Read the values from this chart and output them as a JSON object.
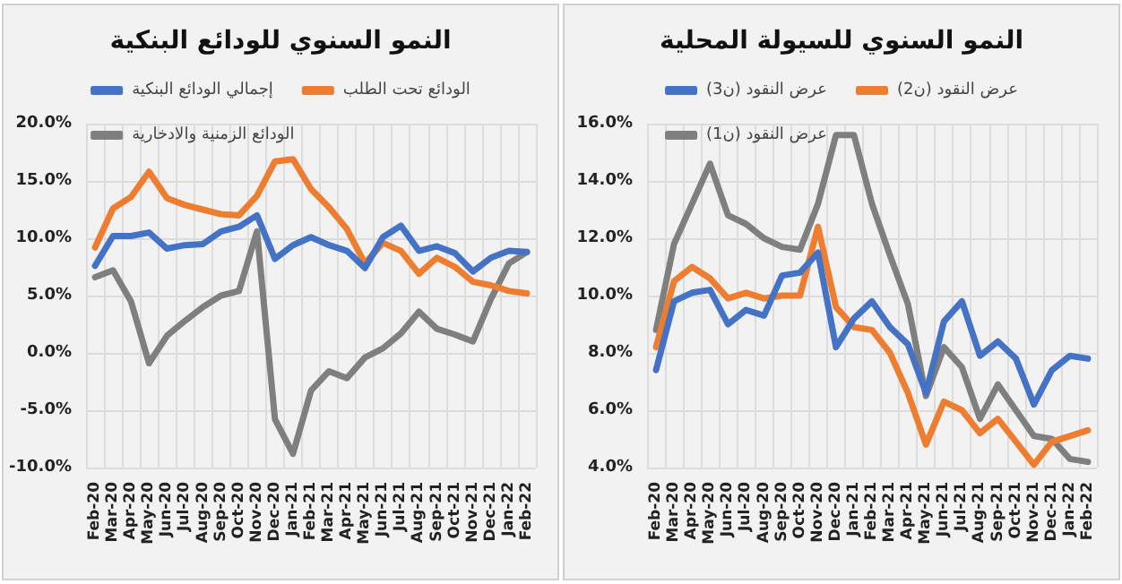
{
  "chart_data": [
    {
      "type": "line",
      "title": "النمو السنوي للودائع البنكية",
      "categories": [
        "Feb-20",
        "Mar-20",
        "Apr-20",
        "May-20",
        "Jun-20",
        "Jul-20",
        "Aug-20",
        "Sep-20",
        "Oct-20",
        "Nov-20",
        "Dec-20",
        "Jan-21",
        "Feb-21",
        "Mar-21",
        "Apr-21",
        "May-21",
        "Jun-21",
        "Jul-21",
        "Aug-21",
        "Sep-21",
        "Oct-21",
        "Nov-21",
        "Dec-21",
        "Jan-22",
        "Feb-22"
      ],
      "series": [
        {
          "name": "الودائع الزمنية والادخارية",
          "color": "#7f7f7f",
          "values": [
            6.6,
            7.2,
            4.5,
            -0.9,
            1.5,
            2.8,
            4.0,
            5.0,
            5.4,
            10.6,
            -5.8,
            -8.8,
            -3.3,
            -1.6,
            -2.2,
            -0.4,
            0.4,
            1.7,
            3.6,
            2.1,
            1.6,
            1.0,
            4.7,
            7.8,
            8.8
          ]
        },
        {
          "name": "الودائع تحت الطلب",
          "color": "#ed7d31",
          "values": [
            9.2,
            12.6,
            13.6,
            15.8,
            13.5,
            12.9,
            12.5,
            12.1,
            12.0,
            13.7,
            16.7,
            16.9,
            14.3,
            12.7,
            10.8,
            7.8,
            9.6,
            8.9,
            6.9,
            8.3,
            7.5,
            6.2,
            5.9,
            5.4,
            5.2
          ]
        },
        {
          "name": "إجمالي الودائع البنكية",
          "color": "#4472c4",
          "values": [
            7.6,
            10.2,
            10.2,
            10.5,
            9.1,
            9.4,
            9.5,
            10.6,
            11.0,
            12.0,
            8.2,
            9.4,
            10.1,
            9.4,
            8.9,
            7.4,
            10.1,
            11.1,
            8.9,
            9.3,
            8.7,
            7.1,
            8.3,
            8.9,
            8.8
          ]
        }
      ],
      "ylim": [
        -10,
        20
      ],
      "yticks": [
        {
          "value": -10,
          "label": "-10.0%"
        },
        {
          "value": -5,
          "label": "-5.0%"
        },
        {
          "value": 0,
          "label": "0.0%"
        },
        {
          "value": 5,
          "label": "5.0%"
        },
        {
          "value": 10,
          "label": "10.0%"
        },
        {
          "value": 15,
          "label": "15.0%"
        },
        {
          "value": 20,
          "label": "20.0%"
        }
      ],
      "grid": true,
      "legend": "top",
      "marker": "none",
      "line_style": "solid"
    },
    {
      "type": "line",
      "title": "النمو السنوي للسيولة المحلية",
      "categories": [
        "Feb-20",
        "Mar-20",
        "Apr-20",
        "May-20",
        "Jun-20",
        "Jul-20",
        "Aug-20",
        "Sep-20",
        "Oct-20",
        "Nov-20",
        "Dec-20",
        "Jan-21",
        "Feb-21",
        "Mar-21",
        "Apr-21",
        "May-21",
        "Jun-21",
        "Jul-21",
        "Aug-21",
        "Sep-21",
        "Oct-21",
        "Nov-21",
        "Dec-21",
        "Jan-22",
        "Feb-22"
      ],
      "series": [
        {
          "name": "عرض النقود (ن1)",
          "color": "#7f7f7f",
          "values": [
            8.8,
            11.8,
            13.2,
            14.6,
            12.8,
            12.5,
            12.0,
            11.7,
            11.6,
            13.2,
            15.6,
            15.6,
            13.2,
            11.4,
            9.7,
            6.5,
            8.2,
            7.5,
            5.7,
            6.9,
            6.0,
            5.1,
            5.0,
            4.3,
            4.2
          ]
        },
        {
          "name": "عرض النقود (ن2)",
          "color": "#ed7d31",
          "values": [
            8.2,
            10.5,
            11.0,
            10.6,
            9.9,
            10.1,
            9.9,
            10.0,
            10.0,
            12.4,
            9.6,
            8.9,
            8.8,
            8.0,
            6.6,
            4.8,
            6.3,
            6.0,
            5.2,
            5.7,
            4.9,
            4.1,
            4.9,
            5.1,
            5.3
          ]
        },
        {
          "name": "عرض النقود (ن3)",
          "color": "#4472c4",
          "values": [
            7.4,
            9.8,
            10.1,
            10.2,
            9.0,
            9.5,
            9.3,
            10.7,
            10.8,
            11.5,
            8.2,
            9.2,
            9.8,
            8.9,
            8.3,
            6.6,
            9.1,
            9.8,
            7.9,
            8.4,
            7.8,
            6.2,
            7.4,
            7.9,
            7.8
          ]
        }
      ],
      "ylim": [
        4,
        16
      ],
      "yticks": [
        {
          "value": 4,
          "label": "4.0%"
        },
        {
          "value": 6,
          "label": "6.0%"
        },
        {
          "value": 8,
          "label": "8.0%"
        },
        {
          "value": 10,
          "label": "10.0%"
        },
        {
          "value": 12,
          "label": "12.0%"
        },
        {
          "value": 14,
          "label": "14.0%"
        },
        {
          "value": 16,
          "label": "16.0%"
        }
      ],
      "grid": true,
      "legend": "top",
      "marker": "none",
      "line_style": "solid"
    }
  ]
}
